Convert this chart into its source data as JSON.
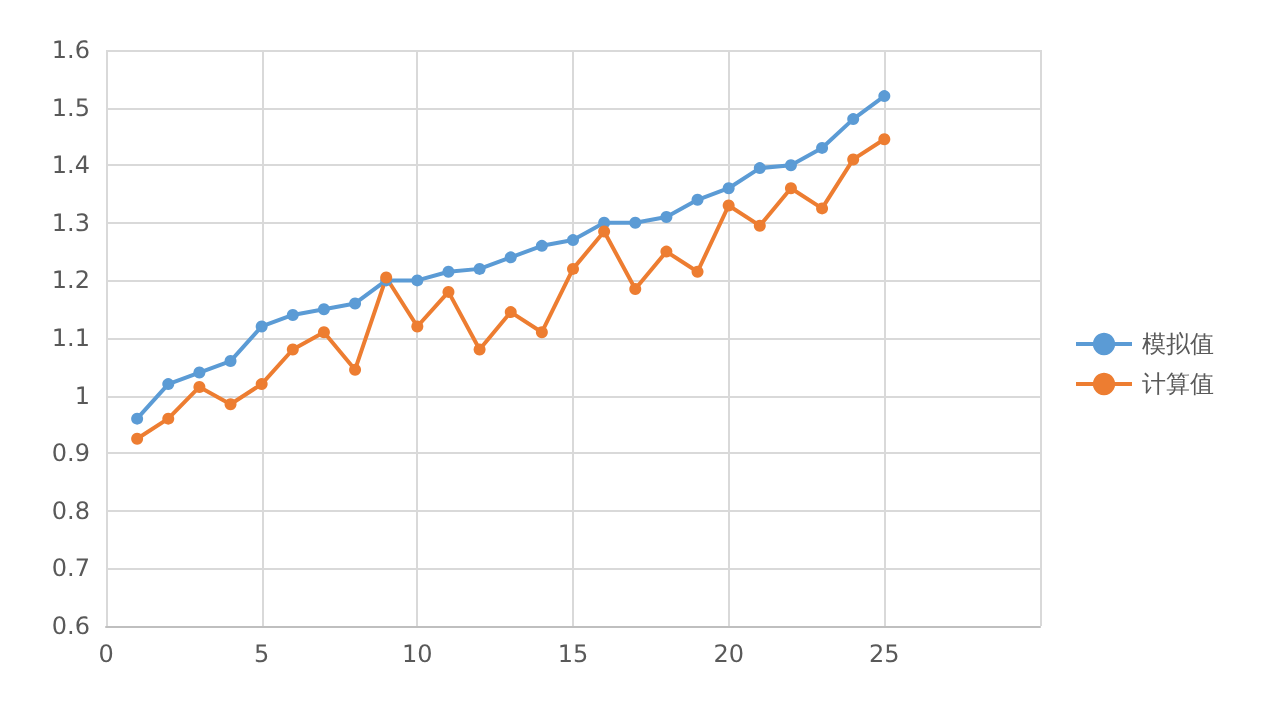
{
  "chart_data": {
    "type": "line",
    "x": [
      1,
      2,
      3,
      4,
      5,
      6,
      7,
      8,
      9,
      10,
      11,
      12,
      13,
      14,
      15,
      16,
      17,
      18,
      19,
      20,
      21,
      22,
      23,
      24,
      25
    ],
    "series": [
      {
        "name": "模拟值",
        "color": "#5b9bd5",
        "values": [
          0.96,
          1.02,
          1.04,
          1.06,
          1.12,
          1.14,
          1.15,
          1.16,
          1.2,
          1.2,
          1.215,
          1.22,
          1.24,
          1.26,
          1.27,
          1.3,
          1.3,
          1.31,
          1.34,
          1.36,
          1.395,
          1.4,
          1.43,
          1.48,
          1.52
        ]
      },
      {
        "name": "计算值",
        "color": "#ed7d31",
        "values": [
          0.925,
          0.96,
          1.015,
          0.985,
          1.02,
          1.08,
          1.11,
          1.045,
          1.205,
          1.12,
          1.18,
          1.08,
          1.145,
          1.11,
          1.22,
          1.285,
          1.185,
          1.25,
          1.215,
          1.33,
          1.295,
          1.36,
          1.325,
          1.41,
          1.445
        ]
      }
    ],
    "xlim": [
      0,
      30
    ],
    "xticks": [
      0,
      5,
      10,
      15,
      20,
      25,
      {
        "value": 30,
        "label": null
      }
    ],
    "ylim": [
      0.6,
      1.6
    ],
    "yticks": [
      0.6,
      0.7,
      0.8,
      0.9,
      1,
      1.1,
      1.2,
      1.3,
      1.4,
      1.5,
      1.6
    ],
    "grid": true,
    "legend": "right",
    "marker": "circle",
    "line_style": "solid"
  }
}
